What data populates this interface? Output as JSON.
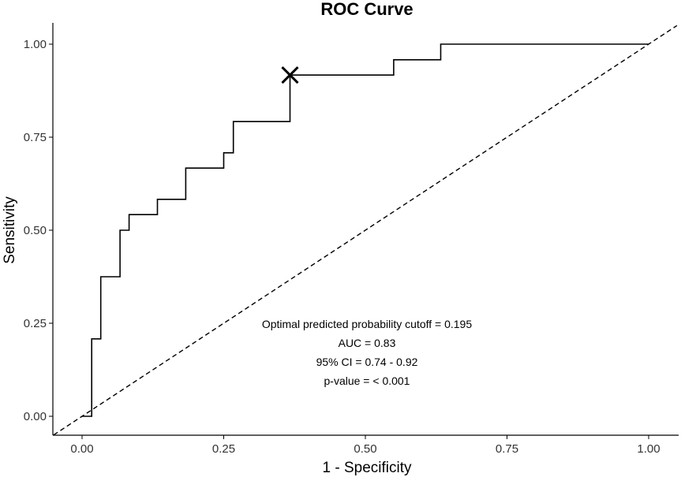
{
  "chart_data": {
    "type": "line",
    "title": "ROC Curve",
    "xlabel": "1 - Specificity",
    "ylabel": "Sensitivity",
    "xlim": [
      -0.05,
      1.05
    ],
    "ylim": [
      -0.05,
      1.05
    ],
    "x_ticks": [
      0,
      0.25,
      0.5,
      0.75,
      1
    ],
    "x_tick_labels": [
      "0.00",
      "0.25",
      "0.50",
      "0.75",
      "1.00"
    ],
    "y_ticks": [
      0,
      0.25,
      0.5,
      0.75,
      1
    ],
    "y_tick_labels": [
      "0.00",
      "0.25",
      "0.50",
      "0.75",
      "1.00"
    ],
    "series": [
      {
        "name": "ROC",
        "style": "step",
        "x": [
          0,
          0.017,
          0.017,
          0.033,
          0.033,
          0.067,
          0.067,
          0.083,
          0.083,
          0.133,
          0.133,
          0.183,
          0.183,
          0.25,
          0.25,
          0.267,
          0.267,
          0.367,
          0.367,
          0.55,
          0.55,
          0.633,
          0.633,
          1.0
        ],
        "y": [
          0,
          0,
          0.208,
          0.208,
          0.375,
          0.375,
          0.5,
          0.5,
          0.542,
          0.542,
          0.583,
          0.583,
          0.667,
          0.667,
          0.708,
          0.708,
          0.792,
          0.792,
          0.917,
          0.917,
          0.958,
          0.958,
          1.0,
          1.0
        ]
      },
      {
        "name": "Reference",
        "style": "dashed",
        "x": [
          -0.05,
          1.05
        ],
        "y": [
          -0.05,
          1.05
        ]
      }
    ],
    "optimal_point": {
      "x": 0.367,
      "y": 0.917,
      "marker": "x"
    },
    "annotations": [
      "Optimal predicted probability cutoff = 0.195",
      "AUC = 0.83",
      "95% CI = 0.74 - 0.92",
      "p-value = < 0.001"
    ],
    "grid": false,
    "legend": "none"
  }
}
